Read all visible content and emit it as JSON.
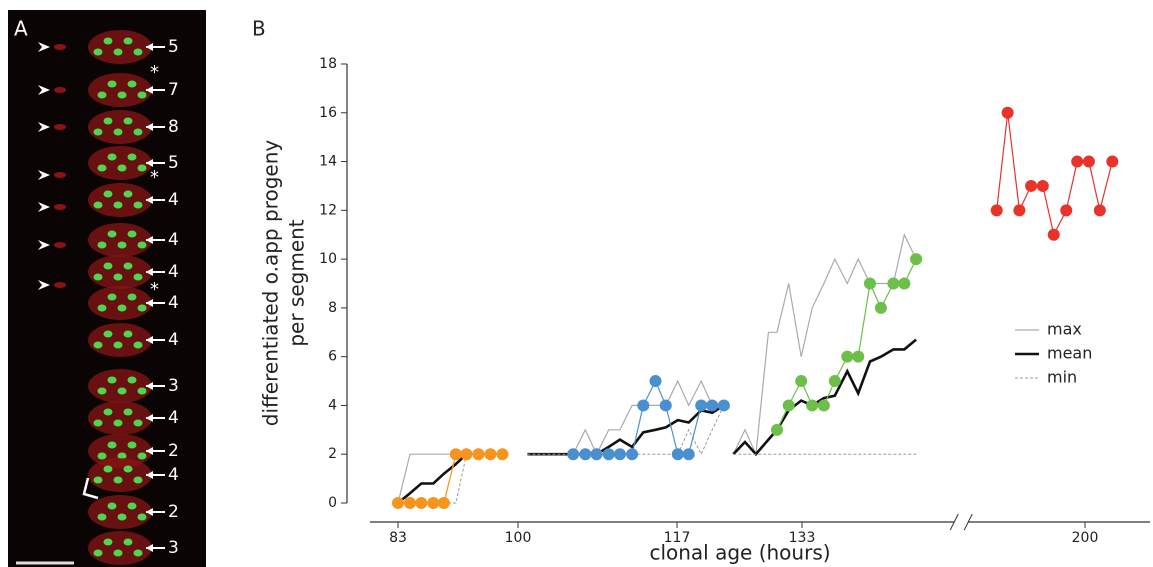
{
  "panel_a": {
    "label": "A",
    "counts": [
      5,
      7,
      8,
      5,
      4,
      4,
      4,
      4,
      4,
      3,
      4,
      2,
      4,
      2,
      3
    ],
    "asterisks": [
      "*",
      "*",
      "*"
    ]
  },
  "chart_data": {
    "type": "line",
    "panel_label": "B",
    "ylabel": [
      "differentiated o.app progeny",
      "per segment"
    ],
    "xlabel": "clonal age (hours)",
    "ylim": [
      0,
      18
    ],
    "yticks": [
      0,
      2,
      4,
      6,
      8,
      10,
      12,
      14,
      16,
      18
    ],
    "xlim": [
      80,
      207
    ],
    "xticks": [
      83,
      100,
      117,
      133,
      200
    ],
    "xbreak": [
      153,
      184
    ],
    "legend": "right",
    "series": [
      {
        "name": "max",
        "color": "#aaaaaa",
        "style": "solid",
        "x": [
          83,
          84.7,
          86.3,
          88,
          89.5,
          91.2,
          92.7,
          null,
          101,
          105.9,
          107.2,
          108.4,
          109.7,
          110.9,
          112.2,
          113.4,
          114.7,
          115.8,
          117.1,
          118.5,
          120.1,
          121.5,
          123,
          null,
          124.2,
          125.7,
          127.1,
          128.7,
          129.8,
          131.3,
          132.9,
          134.3,
          135.8,
          137.2,
          138.8,
          140.2,
          141.7,
          143.1,
          144.7,
          146.1,
          147.6
        ],
        "values": [
          0,
          2,
          2,
          2,
          2,
          2,
          2,
          null,
          2,
          2,
          3,
          2,
          3,
          3,
          4,
          4,
          4,
          4,
          5,
          4,
          5,
          4,
          4,
          null,
          2,
          3,
          2,
          7,
          7,
          9,
          6,
          8,
          9,
          10,
          9,
          10,
          9,
          9,
          9,
          11,
          10
        ]
      },
      {
        "name": "mean",
        "color": "#111111",
        "style": "bold",
        "x": [
          83,
          84.7,
          86.3,
          88,
          89.5,
          91.2,
          92.7,
          null,
          101,
          105.9,
          107.2,
          108.4,
          109.7,
          110.9,
          112.2,
          113.4,
          114.7,
          115.8,
          117.1,
          118.5,
          120.1,
          121.5,
          123,
          null,
          124.2,
          125.7,
          127.1,
          128.7,
          129.8,
          131.3,
          132.9,
          134.3,
          135.8,
          137.2,
          138.8,
          140.2,
          141.7,
          143.1,
          144.7,
          146.1,
          147.6
        ],
        "values": [
          0,
          0.4,
          0.8,
          0.8,
          1.2,
          1.6,
          2,
          null,
          2,
          2,
          2,
          2,
          2.3,
          2.6,
          2.3,
          2.9,
          3,
          3.1,
          3.4,
          3.3,
          3.8,
          3.7,
          4,
          null,
          2,
          2.5,
          2,
          2.6,
          3,
          3.8,
          4.2,
          4,
          4.3,
          4.4,
          5.4,
          4.5,
          5.8,
          6,
          6.3,
          6.3,
          6.7
        ]
      },
      {
        "name": "min",
        "color": "#999999",
        "style": "dashed",
        "x": [
          83,
          91.2,
          92.7,
          97.8,
          null,
          101,
          117.1,
          118.5,
          120.1,
          121.5,
          123,
          null,
          124.2,
          147.6
        ],
        "values": [
          0,
          0,
          2,
          2,
          null,
          2,
          2,
          3,
          2,
          3,
          4,
          null,
          2,
          2
        ]
      },
      {
        "color": "#f7941d",
        "style": "points",
        "x": [
          83,
          84.7,
          86.3,
          88,
          89.5,
          91.2,
          92.7,
          94.4,
          96.1,
          97.8
        ],
        "values": [
          0,
          0,
          0,
          0,
          0,
          2,
          2,
          2,
          2,
          2
        ]
      },
      {
        "color": "#4a90d0",
        "style": "points",
        "x": [
          105.9,
          107.2,
          108.4,
          109.7,
          110.9,
          112.2,
          113.4,
          114.7,
          115.8,
          117.1,
          118.5,
          120.1,
          121.5,
          123
        ],
        "values": [
          2,
          2,
          2,
          2,
          2,
          2,
          4,
          5,
          4,
          2,
          2,
          4,
          4,
          4
        ]
      },
      {
        "color": "#6cc04a",
        "style": "points",
        "x": [
          129.8,
          131.3,
          132.9,
          134.3,
          135.8,
          137.2,
          138.8,
          140.2,
          141.7,
          143.1,
          144.7,
          146.1,
          147.6
        ],
        "values": [
          3,
          4,
          5,
          4,
          4,
          5,
          6,
          6,
          9,
          8,
          9,
          9,
          10
        ]
      },
      {
        "color": "#e8332a",
        "style": "points",
        "x": [
          188.7,
          190.1,
          191.6,
          193.1,
          194.6,
          196,
          197.6,
          199,
          200.5,
          201.9,
          203.5
        ],
        "values": [
          12,
          16,
          12,
          13,
          13,
          11,
          12,
          14,
          14,
          12,
          14
        ]
      }
    ]
  }
}
